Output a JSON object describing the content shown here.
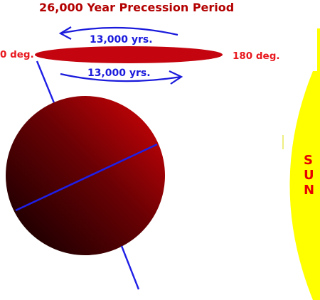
{
  "title": "26,000 Year Precession Period",
  "labels": {
    "left_degree": "0 deg.",
    "right_degree": "180 deg.",
    "upper_arrow": "13,000 yrs.",
    "lower_arrow": "13,000 yrs.",
    "sun_letters": [
      "S",
      "U",
      "N"
    ]
  },
  "colors": {
    "title": "#b30000",
    "degree_labels": "#e8191f",
    "arrows": "#1a1adc",
    "orbit_disc": "#c4050f",
    "planet_light": "#d90408",
    "planet_dark": "#0a0000",
    "axis": "#1f1fe6",
    "sun": "#ffff00",
    "sun_text": "#e60000"
  }
}
